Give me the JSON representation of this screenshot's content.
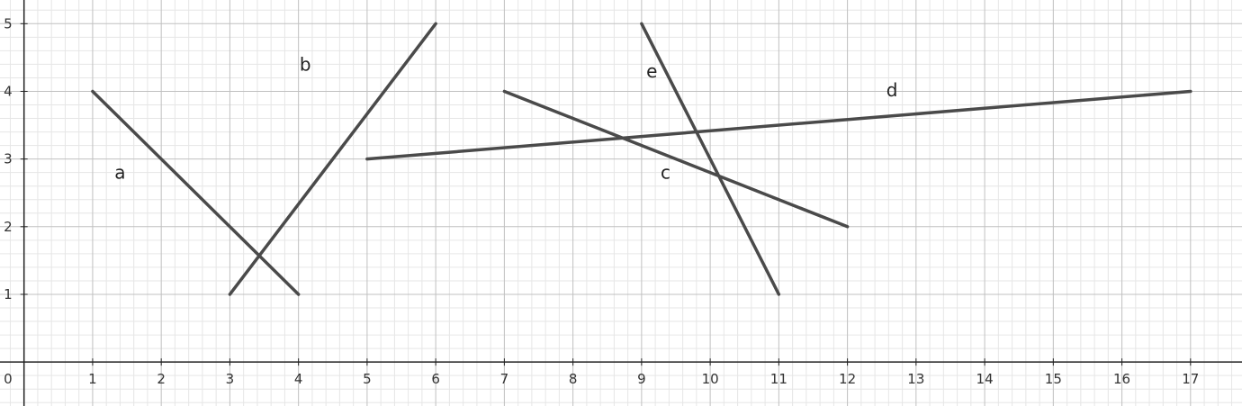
{
  "chart_data": {
    "type": "segments",
    "xlim": [
      -0.35,
      17.75
    ],
    "ylim": [
      -0.65,
      5.35
    ],
    "x_ticks": [
      1,
      2,
      3,
      4,
      5,
      6,
      7,
      8,
      9,
      10,
      11,
      12,
      13,
      14,
      15,
      16,
      17
    ],
    "y_ticks": [
      1,
      2,
      3,
      4,
      5
    ],
    "x_tick_labels": [
      "1",
      "2",
      "3",
      "4",
      "5",
      "6",
      "7",
      "8",
      "9",
      "10",
      "11",
      "12",
      "13",
      "14",
      "15",
      "16",
      "17"
    ],
    "y_tick_labels": [
      "1",
      "2",
      "3",
      "4",
      "5"
    ],
    "origin_label": "0",
    "grid": true,
    "minor_grid_step": 0.2,
    "colors": {
      "major_grid": "#c0c0c0",
      "minor_grid": "#e6e6e6",
      "axis": "#222222",
      "segment": "#4a4a4a"
    },
    "segments": [
      {
        "name": "a",
        "from": [
          1,
          4
        ],
        "to": [
          4,
          1
        ],
        "label_at": [
          1.4,
          2.8
        ]
      },
      {
        "name": "b",
        "from": [
          3,
          1
        ],
        "to": [
          6,
          5
        ],
        "label_at": [
          4.1,
          4.4
        ]
      },
      {
        "name": "c",
        "from": [
          7,
          4
        ],
        "to": [
          12,
          2
        ],
        "label_at": [
          9.35,
          2.8
        ]
      },
      {
        "name": "d",
        "from": [
          5,
          3
        ],
        "to": [
          17,
          4
        ],
        "label_at": [
          12.65,
          4.02
        ]
      },
      {
        "name": "e",
        "from": [
          9,
          5
        ],
        "to": [
          11,
          1
        ],
        "label_at": [
          9.15,
          4.3
        ]
      }
    ]
  }
}
